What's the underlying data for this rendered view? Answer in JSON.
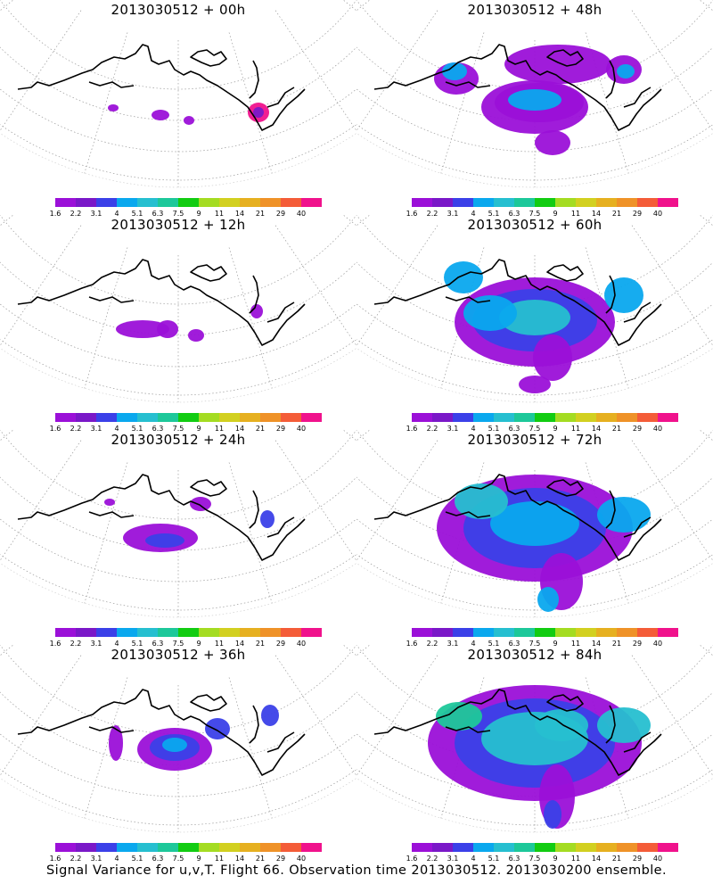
{
  "caption": "Signal Variance for u,v,T. Flight 66. Observation time 2013030512. 2013030200 ensemble.",
  "colorbar": {
    "colors": [
      "#9b10d8",
      "#7a18c8",
      "#3b40e8",
      "#0aa8ee",
      "#26bfd0",
      "#1dc89a",
      "#12cc12",
      "#a4dc22",
      "#d2d020",
      "#e6b020",
      "#ef9228",
      "#f45c38",
      "#f0128c"
    ],
    "labels": [
      "1.6",
      "2.2",
      "3.1",
      "4",
      "5.1",
      "6.3",
      "7.5",
      "9",
      "11",
      "14",
      "21",
      "29",
      "40"
    ]
  },
  "panels": [
    {
      "title": "2013030512 + 00h"
    },
    {
      "title": "2013030512 + 12h"
    },
    {
      "title": "2013030512 + 24h"
    },
    {
      "title": "2013030512 + 36h"
    },
    {
      "title": "2013030512 + 48h"
    },
    {
      "title": "2013030512 + 60h"
    },
    {
      "title": "2013030512 + 72h"
    },
    {
      "title": "2013030512 + 84h"
    }
  ]
}
